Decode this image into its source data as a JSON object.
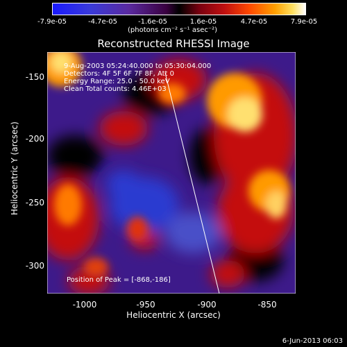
{
  "colorbar": {
    "ticks": [
      "-7.9e-05",
      "-4.7e-05",
      "-1.6e-05",
      "1.6e-05",
      "4.7e-05",
      "7.9e-05"
    ],
    "units": "(photons cm⁻² s⁻¹ asec⁻²)"
  },
  "title": "Reconstructed RHESSI Image",
  "info": {
    "time": "9-Aug-2003 05:24:40.000 to 05:30:04.000",
    "detectors": "Detectors: 4F 5F 6F 7F 8F, Att 0",
    "energy": "Energy Range: 25.0 - 50.0 keV",
    "clean": "Clean     Total counts: 4.46E+03"
  },
  "peak": "Position of Peak = [-868,-186]",
  "xaxis": {
    "title": "Heliocentric X (arcsec)",
    "ticks": [
      "-1000",
      "-950",
      "-900",
      "-850"
    ]
  },
  "yaxis": {
    "title": "Heliocentric Y (arcsec)",
    "ticks": [
      "-150",
      "-200",
      "-250",
      "-300"
    ]
  },
  "timestamp": "6-Jun-2013 06:03"
}
